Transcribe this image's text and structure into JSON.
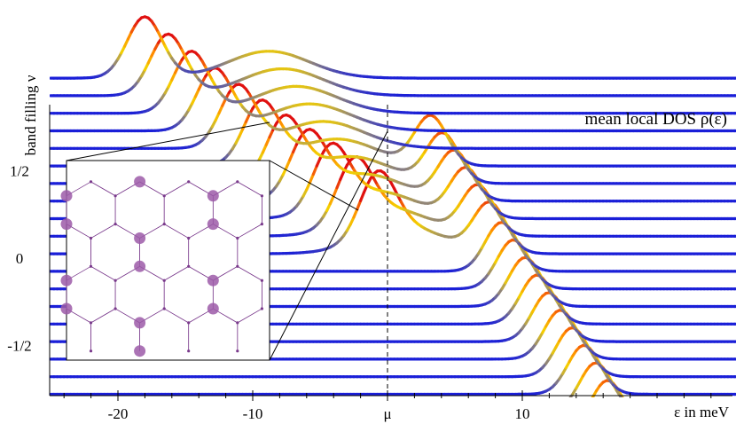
{
  "chart_data": {
    "type": "line",
    "title": "mean local DOS ρ(ε)",
    "xlabel": "ε in meV",
    "ylabel": "band filling ν",
    "xlim": [
      -25,
      25
    ],
    "x_ticks": [
      {
        "value": -20,
        "label": "-20"
      },
      {
        "value": -10,
        "label": "-10"
      },
      {
        "value": 0,
        "label": "μ"
      },
      {
        "value": 10,
        "label": "10"
      }
    ],
    "y_ticks": [
      {
        "value": 0.5,
        "label": "1/2"
      },
      {
        "value": 0,
        "label": "0"
      },
      {
        "value": -0.5,
        "label": "-1/2"
      }
    ],
    "fermi_line": {
      "x": 0,
      "label": "μ",
      "style": "dashed"
    },
    "filling_range": [
      -0.98,
      1.03
    ],
    "num_curves": 21,
    "curve_features": {
      "sharp_peak_1_eV_at_filling_1": -17.5,
      "sharp_peak_1_eV_at_filling_0": -0.3,
      "sharp_peak_2_eV_at_filling_0": 7.8,
      "sharp_peak_2_eV_at_filling_-1": 16.5,
      "broad_peak_eV_at_filling_1": -8.5,
      "broad_peak_eV_at_filling_0": 1.5,
      "peak_height_filling_units": [
        0.35,
        0.28
      ],
      "color_scale": [
        "#1a1fd8",
        "#8a8080",
        "#f4d000",
        "#ff8c00",
        "#e01010"
      ]
    },
    "inset": {
      "type": "honeycomb lattice",
      "description": "occupied sites marked on a hexagonal lattice",
      "dot_color": "#9c5aa8",
      "line_color": "#7a3a8c"
    }
  }
}
